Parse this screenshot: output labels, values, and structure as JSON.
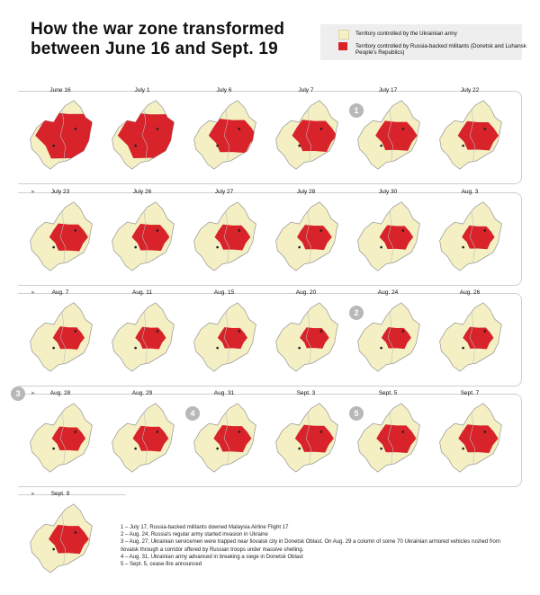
{
  "title": "How the war zone transformed between June 16 and Sept. 19",
  "legend": [
    {
      "label": "Territory controlled by the Ukrainian army",
      "color": "#f4f0c3"
    },
    {
      "label": "Territory controlled by Russia-backed militants (Donetsk and Luhansk People's Republics)",
      "color": "#d8232a"
    }
  ],
  "colors": {
    "territory": "#f4f0c3",
    "militants": "#d8232a",
    "border": "#9a9a9a",
    "badge": "#b8b8b8"
  },
  "maps": [
    {
      "date": "June 16",
      "extent": 1.0
    },
    {
      "date": "July 1",
      "extent": 0.98,
      "badge": ""
    },
    {
      "date": "July 6",
      "extent": 0.62
    },
    {
      "date": "July 7",
      "extent": 0.56
    },
    {
      "date": "July 17",
      "extent": 0.5,
      "badge": "1"
    },
    {
      "date": "July 22",
      "extent": 0.48
    },
    {
      "date": "July 23",
      "extent": 0.44
    },
    {
      "date": "July 26",
      "extent": 0.42
    },
    {
      "date": "July 27",
      "extent": 0.38
    },
    {
      "date": "July 28",
      "extent": 0.36
    },
    {
      "date": "July 30",
      "extent": 0.34
    },
    {
      "date": "Aug. 3",
      "extent": 0.32
    },
    {
      "date": "Aug. 7",
      "extent": 0.3
    },
    {
      "date": "Aug. 11",
      "extent": 0.28
    },
    {
      "date": "Aug. 15",
      "extent": 0.26
    },
    {
      "date": "Aug. 20",
      "extent": 0.25
    },
    {
      "date": "Aug. 24",
      "extent": 0.26,
      "badge": "2"
    },
    {
      "date": "Aug. 26",
      "extent": 0.28
    },
    {
      "date": "Aug. 28",
      "extent": 0.34
    },
    {
      "date": "Aug. 29",
      "extent": 0.38
    },
    {
      "date": "Aug. 31",
      "extent": 0.42,
      "badge": "4"
    },
    {
      "date": "Sept. 3",
      "extent": 0.44
    },
    {
      "date": "Sept. 5",
      "extent": 0.46,
      "badge": "5"
    },
    {
      "date": "Sept. 7",
      "extent": 0.46
    },
    {
      "date": "Sept. 9",
      "extent": 0.47
    }
  ],
  "row_badges": [
    {
      "row": 3,
      "label": "3"
    }
  ],
  "notes": [
    "1 – July 17, Russia-backed militants downed Malaysia Airline Flight 17",
    "2 – Aug. 24, Russia's regular army started invasion in Ukraine",
    "3 – Aug. 27, Ukrainian servicemen were trapped near Ilovaisk city in Donetsk Oblast. On Aug. 29 a column of some 70 Ukrainian armored vehicles rushed from Ilovaisk through a corridor offered by Russian troops under massive shelling.",
    "4 – Aug. 31, Ukrainian army advanced in breaking a siege in Donetsk Oblast",
    "5 – Sept. 5, cease-fire announced"
  ]
}
